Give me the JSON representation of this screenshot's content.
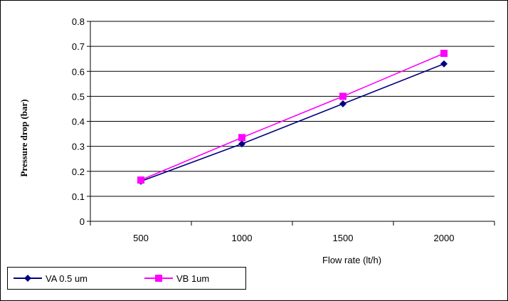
{
  "chart_data": {
    "type": "line",
    "categories": [
      "500",
      "1000",
      "1500",
      "2000"
    ],
    "series": [
      {
        "name": "VA 0.5 um",
        "values": [
          0.16,
          0.31,
          0.47,
          0.63
        ],
        "color": "#000080",
        "marker": "diamond"
      },
      {
        "name": "VB 1um",
        "values": [
          0.165,
          0.335,
          0.5,
          0.672
        ],
        "color": "#ff00ff",
        "marker": "square"
      }
    ],
    "xlabel": "Flow rate (lt/h)",
    "ylabel": "Pressure drop (bar)",
    "ylim": [
      0,
      0.8
    ],
    "yticks": [
      "0",
      "0.1",
      "0.2",
      "0.3",
      "0.4",
      "0.5",
      "0.6",
      "0.7",
      "0.8"
    ],
    "grid": true,
    "legend_position": "bottom-left"
  }
}
